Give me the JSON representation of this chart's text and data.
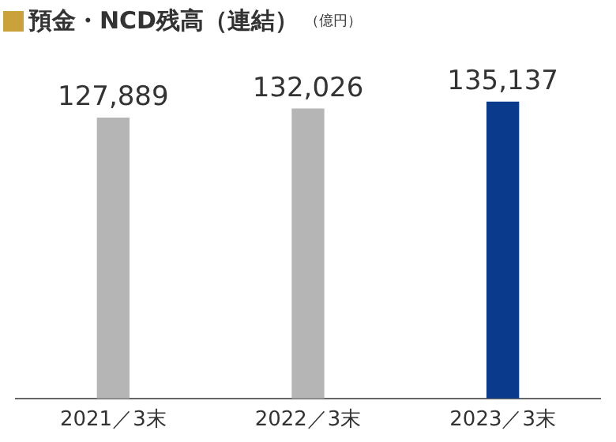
{
  "chart_data": {
    "type": "bar",
    "title": "預金・NCD残高（連結）",
    "subtitle": "（億円）",
    "categories": [
      "2021／3末",
      "2022／3末",
      "2023／3末"
    ],
    "values": [
      127889,
      132026,
      135137
    ],
    "colors": [
      "#b5b5b5",
      "#b5b5b5",
      "#0a3a8c"
    ],
    "value_labels": [
      "127,889",
      "132,026",
      "135,137"
    ],
    "tick_labels": "x",
    "grid": false,
    "legend": false
  }
}
